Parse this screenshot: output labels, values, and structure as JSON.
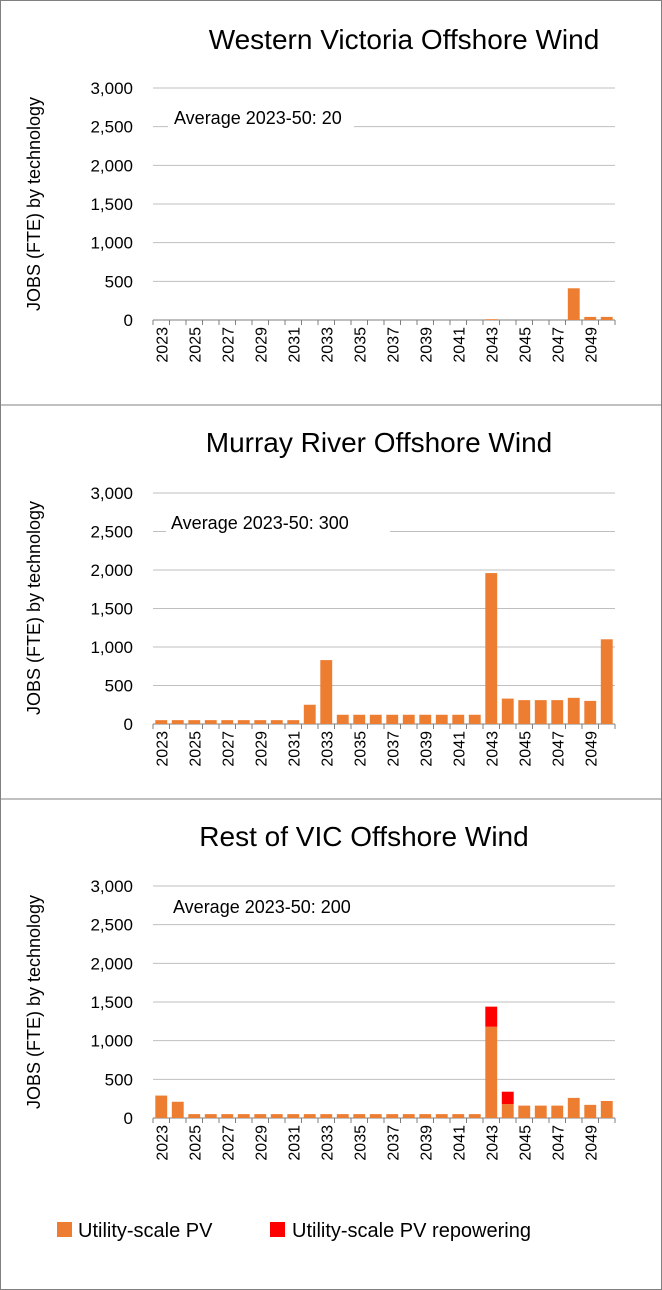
{
  "legend": {
    "items": [
      {
        "label": "Utility-scale PV",
        "color": "#ED7D31"
      },
      {
        "label": "Utility-scale PV repowering",
        "color": "#FF0000"
      }
    ]
  },
  "chart_data": [
    {
      "type": "bar",
      "stacked": true,
      "title": "Western Victoria Offshore Wind",
      "ylabel": "JOBS (FTE) by technology",
      "xlabel": "",
      "ylim": [
        0,
        3000
      ],
      "yticks": [
        "0",
        "500",
        "1,000",
        "1,500",
        "2,000",
        "2,500",
        "3,000"
      ],
      "annotation": "Average 2023-50: 20",
      "categories": [
        2023,
        2024,
        2025,
        2026,
        2027,
        2028,
        2029,
        2030,
        2031,
        2032,
        2033,
        2034,
        2035,
        2036,
        2037,
        2038,
        2039,
        2040,
        2041,
        2042,
        2043,
        2044,
        2045,
        2046,
        2047,
        2048,
        2049,
        2050
      ],
      "xtick_labels": [
        "2023",
        "2025",
        "2027",
        "2029",
        "2031",
        "2033",
        "2035",
        "2037",
        "2039",
        "2041",
        "2043",
        "2045",
        "2047",
        "2049"
      ],
      "series": [
        {
          "name": "Utility-scale PV",
          "color": "#ED7D31",
          "values": [
            0,
            0,
            0,
            0,
            0,
            0,
            0,
            0,
            0,
            0,
            0,
            0,
            0,
            0,
            0,
            0,
            0,
            0,
            0,
            0,
            10,
            0,
            0,
            0,
            0,
            410,
            40,
            40
          ]
        },
        {
          "name": "Utility-scale PV repowering",
          "color": "#FF0000",
          "values": [
            0,
            0,
            0,
            0,
            0,
            0,
            0,
            0,
            0,
            0,
            0,
            0,
            0,
            0,
            0,
            0,
            0,
            0,
            0,
            0,
            0,
            0,
            0,
            0,
            0,
            0,
            0,
            0
          ]
        }
      ]
    },
    {
      "type": "bar",
      "stacked": true,
      "title": "Murray River Offshore Wind",
      "ylabel": "JOBS (FTE) by technology",
      "xlabel": "",
      "ylim": [
        0,
        3000
      ],
      "yticks": [
        "0",
        "500",
        "1,000",
        "1,500",
        "2,000",
        "2,500",
        "3,000"
      ],
      "annotation": "Average 2023-50: 300",
      "categories": [
        2023,
        2024,
        2025,
        2026,
        2027,
        2028,
        2029,
        2030,
        2031,
        2032,
        2033,
        2034,
        2035,
        2036,
        2037,
        2038,
        2039,
        2040,
        2041,
        2042,
        2043,
        2044,
        2045,
        2046,
        2047,
        2048,
        2049,
        2050
      ],
      "xtick_labels": [
        "2023",
        "2025",
        "2027",
        "2029",
        "2031",
        "2033",
        "2035",
        "2037",
        "2039",
        "2041",
        "2043",
        "2045",
        "2047",
        "2049"
      ],
      "series": [
        {
          "name": "Utility-scale PV",
          "color": "#ED7D31",
          "values": [
            50,
            50,
            50,
            50,
            50,
            50,
            50,
            50,
            50,
            250,
            830,
            120,
            120,
            120,
            120,
            120,
            120,
            120,
            120,
            120,
            1960,
            330,
            310,
            310,
            310,
            340,
            300,
            1100
          ]
        },
        {
          "name": "Utility-scale PV repowering",
          "color": "#FF0000",
          "values": [
            0,
            0,
            0,
            0,
            0,
            0,
            0,
            0,
            0,
            0,
            0,
            0,
            0,
            0,
            0,
            0,
            0,
            0,
            0,
            0,
            0,
            0,
            0,
            0,
            0,
            0,
            0,
            0
          ]
        }
      ]
    },
    {
      "type": "bar",
      "stacked": true,
      "title": "Rest of VIC Offshore Wind",
      "ylabel": "JOBS (FTE) by technology",
      "xlabel": "",
      "ylim": [
        0,
        3000
      ],
      "yticks": [
        "0",
        "500",
        "1,000",
        "1,500",
        "2,000",
        "2,500",
        "3,000"
      ],
      "annotation": "Average 2023-50: 200",
      "categories": [
        2023,
        2024,
        2025,
        2026,
        2027,
        2028,
        2029,
        2030,
        2031,
        2032,
        2033,
        2034,
        2035,
        2036,
        2037,
        2038,
        2039,
        2040,
        2041,
        2042,
        2043,
        2044,
        2045,
        2046,
        2047,
        2048,
        2049,
        2050
      ],
      "xtick_labels": [
        "2023",
        "2025",
        "2027",
        "2029",
        "2031",
        "2033",
        "2035",
        "2037",
        "2039",
        "2041",
        "2043",
        "2045",
        "2047",
        "2049"
      ],
      "series": [
        {
          "name": "Utility-scale PV",
          "color": "#ED7D31",
          "values": [
            290,
            210,
            50,
            50,
            50,
            50,
            50,
            50,
            50,
            50,
            50,
            50,
            50,
            50,
            50,
            50,
            50,
            50,
            50,
            50,
            1180,
            180,
            160,
            160,
            160,
            260,
            170,
            220
          ]
        },
        {
          "name": "Utility-scale PV repowering",
          "color": "#FF0000",
          "values": [
            0,
            0,
            0,
            0,
            0,
            0,
            0,
            0,
            0,
            0,
            0,
            0,
            0,
            0,
            0,
            0,
            0,
            0,
            0,
            0,
            260,
            160,
            0,
            0,
            0,
            0,
            0,
            0
          ]
        }
      ]
    }
  ]
}
